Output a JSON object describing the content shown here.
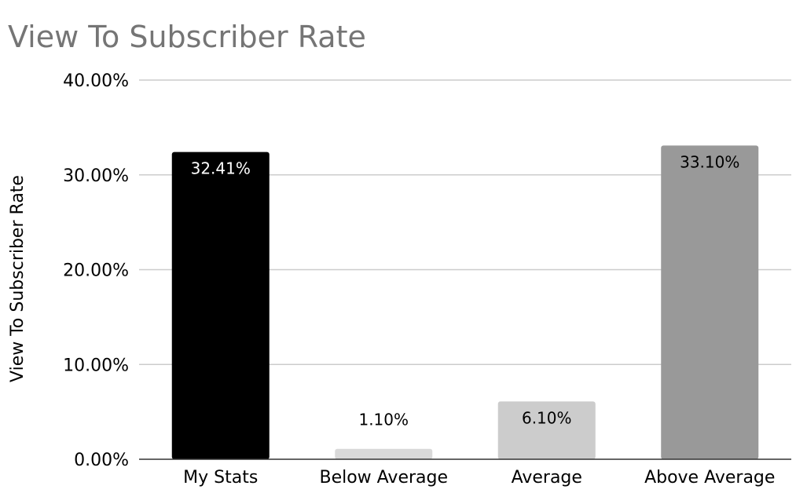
{
  "chart_data": {
    "type": "bar",
    "title": "View To Subscriber Rate",
    "xlabel": "",
    "ylabel": "View To Subscriber Rate",
    "categories": [
      "My Stats",
      "Below Average",
      "Average",
      "Above Average"
    ],
    "values": [
      32.41,
      1.1,
      6.1,
      33.1
    ],
    "data_labels": [
      "32.41%",
      "1.10%",
      "6.10%",
      "33.10%"
    ],
    "bar_colors": [
      "#000000",
      "#d9d9d9",
      "#cccccc",
      "#999999"
    ],
    "label_colors": [
      "#ffffff",
      "#000000",
      "#000000",
      "#000000"
    ],
    "ylim": [
      0,
      40
    ],
    "yticks": [
      0,
      10,
      20,
      30,
      40
    ],
    "ytick_labels": [
      "0.00%",
      "10.00%",
      "20.00%",
      "30.00%",
      "40.00%"
    ],
    "grid": true,
    "legend": "none"
  }
}
